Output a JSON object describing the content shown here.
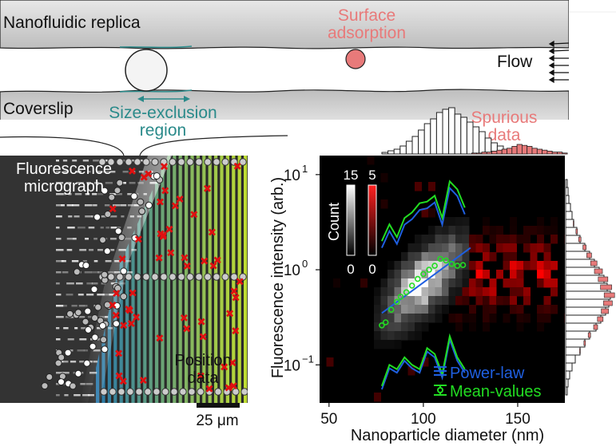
{
  "schematic": {
    "replica_label": "Nanofluidic replica",
    "coverslip_label": "Coverslip",
    "surface_adsorption_line1": "Surface",
    "surface_adsorption_line2": "adsorption",
    "flow_label": "Flow",
    "size_exclusion_line1": "Size-exclusion",
    "size_exclusion_line2": "region",
    "spurious_line1": "Spurious",
    "spurious_line2": "data"
  },
  "micrograph": {
    "fluorescence_line1": "Fluorescence",
    "fluorescence_line2": "micrograph",
    "position_line1": "Position",
    "position_line2": "data",
    "scale_bar": "25 μm"
  },
  "chart_data": {
    "type": "heatmap",
    "xlabel": "Nanoparticle diameter (nm)",
    "ylabel": "Fluorescence intensity (arb.)",
    "xlim": [
      45,
      175
    ],
    "ylim_log10": [
      -1.4,
      1.2
    ],
    "x_ticks": [
      "50",
      "100",
      "150"
    ],
    "y_ticks": [
      {
        "base": "10",
        "exp": "1",
        "value": 10
      },
      {
        "base": "10",
        "exp": "0",
        "value": 1
      },
      {
        "base": "10",
        "exp": "−1",
        "value": 0.1
      }
    ],
    "colorbar_white": {
      "label": "Count",
      "max": "15",
      "min": "0"
    },
    "colorbar_red": {
      "max": "5",
      "min": "0"
    },
    "legend": [
      "Power-law",
      "Mean-values"
    ],
    "mean_values": {
      "x": [
        78,
        80,
        83,
        86,
        88,
        91,
        94,
        97,
        100,
        103,
        106,
        109,
        112,
        115,
        118,
        121
      ],
      "y": [
        0.26,
        0.28,
        0.38,
        0.46,
        0.52,
        0.58,
        0.68,
        0.8,
        0.9,
        1.0,
        1.1,
        1.3,
        1.25,
        1.15,
        1.1,
        1.12
      ]
    },
    "power_law": {
      "x": [
        78,
        125
      ],
      "y": [
        0.35,
        1.7
      ]
    },
    "upper_band": {
      "x": [
        78,
        82,
        86,
        90,
        94,
        98,
        102,
        106,
        110,
        114,
        118,
        122
      ],
      "y": [
        2.0,
        3.0,
        2.2,
        3.5,
        4.0,
        5.0,
        5.2,
        6.0,
        3.5,
        8.5,
        7.0,
        4.5
      ]
    },
    "lower_band": {
      "x": [
        78,
        82,
        86,
        90,
        94,
        98,
        102,
        106,
        110,
        114,
        118,
        122
      ],
      "y": [
        0.06,
        0.1,
        0.09,
        0.12,
        0.1,
        0.09,
        0.15,
        0.13,
        0.08,
        0.2,
        0.12,
        0.09
      ]
    },
    "colors": {
      "power_law": "#1f5fe0",
      "mean_values": "#22dd22",
      "spurious": "#e87a7a"
    }
  }
}
